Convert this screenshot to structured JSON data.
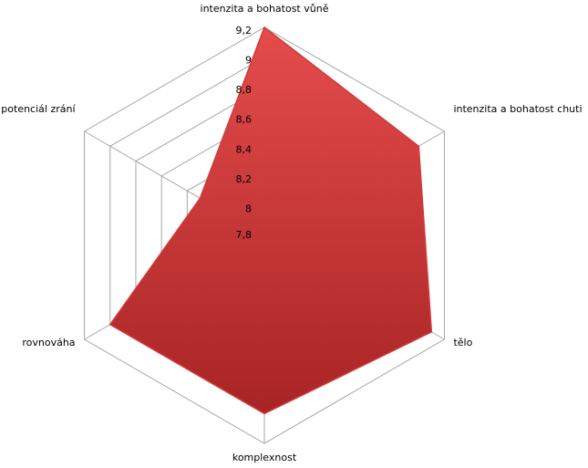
{
  "chart_data": {
    "type": "radar",
    "categories": [
      "intenzita a bohatost vůně",
      "intenzita a bohatost chuti",
      "tělo",
      "komplexnost",
      "rovnováha",
      "potenciál zrání"
    ],
    "values": [
      9.2,
      9.0,
      9.1,
      9.0,
      9.0,
      8.3
    ],
    "color": "#d13a3a",
    "ylim": [
      7.8,
      9.2
    ],
    "yticks": [
      {
        "value": 7.8,
        "label": "7,8"
      },
      8,
      {
        "value": 8.2,
        "label": "8,2"
      },
      {
        "value": 8.4,
        "label": "8,4"
      },
      {
        "value": 8.6,
        "label": "8,6"
      },
      {
        "value": 8.8,
        "label": "8,8"
      },
      9,
      {
        "value": 9.2,
        "label": "9,2"
      }
    ],
    "grid": true
  }
}
